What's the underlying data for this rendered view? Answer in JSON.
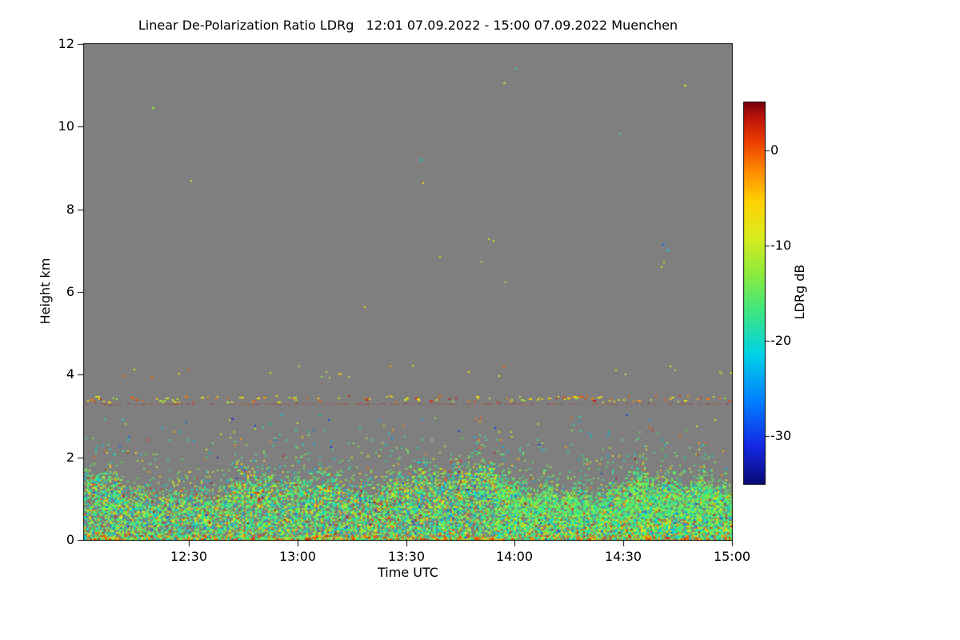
{
  "chart_data": {
    "type": "heatmap",
    "title": "Linear De-Polarization Ratio LDRg   12:01 07.09.2022 - 15:00 07.09.2022 Muenchen",
    "quantity": "Linear De-Polarization Ratio LDRg",
    "station": "Muenchen",
    "date": "07.09.2022",
    "time_start": "12:01",
    "time_end": "15:00",
    "xlabel": "Time UTC",
    "ylabel": "Height km",
    "ylim": [
      0,
      12
    ],
    "y_ticks": [
      0,
      2,
      4,
      6,
      8,
      10,
      12
    ],
    "x_ticks": [
      "12:30",
      "13:00",
      "13:30",
      "14:00",
      "14:30",
      "15:00"
    ],
    "no_signal_color": "#7f7f7f",
    "colorbar": {
      "label": "LDRg dB",
      "ticks": [
        0,
        -10,
        -20,
        -30
      ],
      "vmin": -35,
      "vmax": 5,
      "orientation": "vertical",
      "stops": [
        {
          "t": 0.0,
          "c": [
            10,
            10,
            120
          ]
        },
        {
          "t": 0.1,
          "c": [
            20,
            40,
            230
          ]
        },
        {
          "t": 0.22,
          "c": [
            0,
            130,
            255
          ]
        },
        {
          "t": 0.34,
          "c": [
            0,
            210,
            230
          ]
        },
        {
          "t": 0.45,
          "c": [
            60,
            230,
            130
          ]
        },
        {
          "t": 0.55,
          "c": [
            140,
            235,
            60
          ]
        },
        {
          "t": 0.65,
          "c": [
            220,
            235,
            30
          ]
        },
        {
          "t": 0.74,
          "c": [
            255,
            210,
            0
          ]
        },
        {
          "t": 0.82,
          "c": [
            255,
            140,
            0
          ]
        },
        {
          "t": 0.9,
          "c": [
            235,
            60,
            0
          ]
        },
        {
          "t": 0.96,
          "c": [
            190,
            20,
            10
          ]
        },
        {
          "t": 1.0,
          "c": [
            120,
            0,
            10
          ]
        }
      ]
    },
    "features": [
      {
        "kind": "boundary_layer",
        "h_max": 2.7,
        "h_top_mean": 1.2,
        "h_top_var": 0.42,
        "density": 0.6,
        "palette": [
          {
            "p": 0.4,
            "v": [
              -17,
              -12
            ]
          },
          {
            "p": 0.66,
            "v": [
              -20,
              -15
            ]
          },
          {
            "p": 0.78,
            "v": [
              -24,
              -19
            ]
          },
          {
            "p": 0.89,
            "v": [
              -11,
              -6
            ]
          },
          {
            "p": 0.96,
            "v": [
              -5,
              0
            ]
          },
          {
            "p": 0.985,
            "v": [
              1,
              4
            ]
          },
          {
            "p": 1.0,
            "v": [
              -31,
              -25
            ]
          }
        ],
        "enhanced": {
          "start": "13:55",
          "h_min": 0.55,
          "h_max": 1.7,
          "v": [
            -18,
            -13
          ]
        }
      },
      {
        "kind": "layer_line",
        "h": 3.42,
        "h_jitter": 0.08,
        "density": 0.32,
        "th": 2,
        "palette": [
          {
            "p": 0.4,
            "v": [
              -9,
              -5
            ]
          },
          {
            "p": 0.72,
            "v": [
              -4,
              0
            ]
          },
          {
            "p": 0.9,
            "v": [
              0,
              4
            ]
          },
          {
            "p": 1.0,
            "v": [
              -13,
              -9
            ]
          }
        ]
      },
      {
        "kind": "layer_line",
        "h": 3.3,
        "h_jitter": 0.02,
        "density": 0.55,
        "th": 1,
        "alpha": 0.4,
        "palette": [
          {
            "p": 1.0,
            "v": [
              1,
              5
            ]
          }
        ]
      },
      {
        "kind": "sparse_layer",
        "h_min": 3.95,
        "h_max": 4.25,
        "density": 0.06,
        "palette": [
          {
            "p": 0.55,
            "v": [
              -13,
              -8
            ]
          },
          {
            "p": 0.85,
            "v": [
              -8,
              -3
            ]
          },
          {
            "p": 1.0,
            "v": [
              -3,
              1
            ]
          }
        ]
      },
      {
        "kind": "scatter",
        "h_min": 2.25,
        "h_max": 3.05,
        "count": 70,
        "palette": [
          {
            "p": 0.35,
            "v": [
              -24,
              -18
            ]
          },
          {
            "p": 0.6,
            "v": [
              -14,
              -8
            ]
          },
          {
            "p": 0.8,
            "v": [
              -32,
              -26
            ]
          },
          {
            "p": 1.0,
            "v": [
              -6,
              0
            ]
          }
        ]
      },
      {
        "kind": "scatter",
        "h_min": 4.3,
        "h_max": 11.6,
        "count": 12,
        "palette": [
          {
            "p": 0.55,
            "v": [
              -14,
              -9
            ]
          },
          {
            "p": 0.8,
            "v": [
              -22,
              -17
            ]
          },
          {
            "p": 1.0,
            "v": [
              -9,
              -4
            ]
          }
        ]
      }
    ],
    "notable_points": [
      {
        "time": "12:20",
        "height_km": 10.45,
        "ldr_db": -12
      },
      {
        "time": "13:57",
        "height_km": 11.05,
        "ldr_db": -12
      },
      {
        "time": "14:47",
        "height_km": 11.0,
        "ldr_db": -8
      },
      {
        "time": "13:34",
        "height_km": 9.2,
        "ldr_db": -21
      },
      {
        "time": "14:41",
        "height_km": 7.15,
        "ldr_db": -27
      },
      {
        "time": "14:42",
        "height_km": 7.0,
        "ldr_db": -21
      }
    ]
  }
}
